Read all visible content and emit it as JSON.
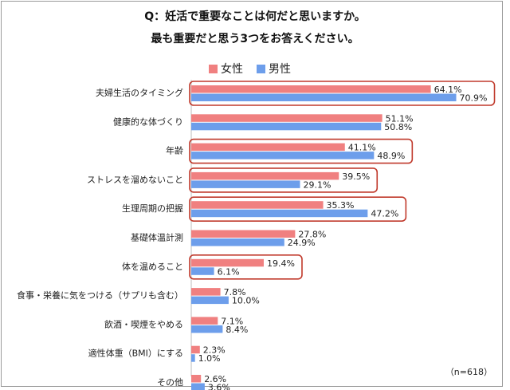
{
  "chart_data": {
    "type": "bar",
    "orientation": "horizontal",
    "title": "Q：妊活で重要なことは何だと思いますか。",
    "subtitle": "最も重要だと思う3つをお答えください。",
    "note": "（n=618）",
    "categories": [
      "夫婦生活のタイミング",
      "健康的な体づくり",
      "年齢",
      "ストレスを溜めないこと",
      "生理周期の把握",
      "基礎体温計測",
      "体を温めること",
      "食事・栄養に気をつける（サプリも含む）",
      "飲酒・喫煙をやめる",
      "適性体重（BMI）にする",
      "その他"
    ],
    "series": [
      {
        "name": "女性",
        "color": "#f08080",
        "values": [
          64.1,
          51.1,
          41.1,
          39.5,
          35.3,
          27.8,
          19.4,
          7.8,
          7.1,
          2.3,
          2.6
        ],
        "labels": [
          "64.1%",
          "51.1%",
          "41.1%",
          "39.5%",
          "35.3%",
          "27.8%",
          "19.4%",
          "7.8%",
          "7.1%",
          "2.3%",
          "2.6%"
        ]
      },
      {
        "name": "男性",
        "color": "#6d9eeb",
        "values": [
          70.9,
          50.8,
          48.9,
          29.1,
          47.2,
          24.9,
          6.1,
          10.0,
          8.4,
          1.0,
          3.6
        ],
        "labels": [
          "70.9%",
          "50.8%",
          "48.9%",
          "29.1%",
          "47.2%",
          "24.9%",
          "6.1%",
          "10.0%",
          "8.4%",
          "1.0%",
          "3.6%"
        ]
      }
    ],
    "highlighted_categories": [
      0,
      2,
      3,
      4,
      6
    ],
    "highlight_color": "#c0392b",
    "legend_position": "top-center",
    "grid": false
  }
}
